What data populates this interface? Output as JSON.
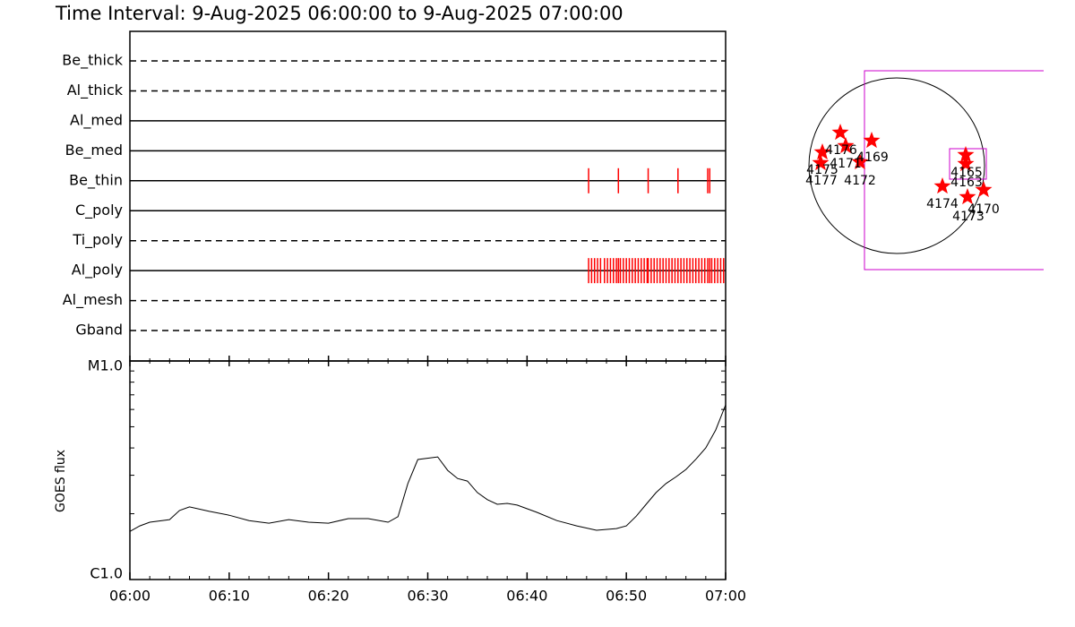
{
  "title": "Time Interval:  9-Aug-2025 06:00:00 to  9-Aug-2025 07:00:00",
  "filter_panel": {
    "xlim": [
      "06:00",
      "07:00"
    ],
    "rows": [
      {
        "name": "Be_thick",
        "style": "dashed",
        "times": []
      },
      {
        "name": "Al_thick",
        "style": "dashed",
        "times": []
      },
      {
        "name": "Al_med",
        "style": "solid",
        "times": []
      },
      {
        "name": "Be_med",
        "style": "solid",
        "times": []
      },
      {
        "name": "Be_thin",
        "style": "solid",
        "times": [
          "06:46:12",
          "06:49:12",
          "06:52:12",
          "06:55:12",
          "06:58:12",
          "06:58:24"
        ]
      },
      {
        "name": "C_poly",
        "style": "solid",
        "times": []
      },
      {
        "name": "Ti_poly",
        "style": "dashed",
        "times": []
      },
      {
        "name": "Al_poly",
        "style": "solid",
        "times": [
          "06:46:12",
          "06:46:30",
          "06:46:48",
          "06:47:06",
          "06:47:24",
          "06:47:48",
          "06:48:06",
          "06:48:24",
          "06:48:42",
          "06:49:00",
          "06:49:12",
          "06:49:24",
          "06:49:42",
          "06:50:00",
          "06:50:18",
          "06:50:36",
          "06:50:54",
          "06:51:12",
          "06:51:30",
          "06:51:48",
          "06:52:06",
          "06:52:12",
          "06:52:30",
          "06:52:48",
          "06:53:06",
          "06:53:24",
          "06:53:42",
          "06:54:00",
          "06:54:18",
          "06:54:36",
          "06:54:54",
          "06:55:12",
          "06:55:30",
          "06:55:48",
          "06:56:06",
          "06:56:24",
          "06:56:42",
          "06:57:00",
          "06:57:18",
          "06:57:36",
          "06:57:54",
          "06:58:12",
          "06:58:24",
          "06:58:36",
          "06:58:54",
          "06:59:12",
          "06:59:30",
          "06:59:48"
        ]
      },
      {
        "name": "Al_mesh",
        "style": "dashed",
        "times": []
      },
      {
        "name": "Gband",
        "style": "dashed",
        "times": []
      }
    ],
    "tick_color": "#ff0000"
  },
  "goes_panel": {
    "type": "line",
    "ylabel": "GOES flux",
    "log_scale": true,
    "ylim": [
      1e-06,
      1e-05
    ],
    "yticks": [
      {
        "value": 1e-05,
        "label": "M1.0"
      },
      {
        "value": 1e-06,
        "label": "C1.0"
      }
    ],
    "yminorticks": [
      2e-06,
      3e-06,
      4e-06,
      5e-06,
      6e-06,
      7e-06,
      8e-06,
      9e-06
    ],
    "xlim": [
      "06:00",
      "07:00"
    ],
    "xticks": [
      "06:00",
      "06:10",
      "06:20",
      "06:30",
      "06:40",
      "06:50",
      "07:00"
    ],
    "xminorticks": [
      "06:02",
      "06:04",
      "06:06",
      "06:08",
      "06:12",
      "06:14",
      "06:16",
      "06:18",
      "06:22",
      "06:24",
      "06:26",
      "06:28",
      "06:32",
      "06:34",
      "06:36",
      "06:38",
      "06:42",
      "06:44",
      "06:46",
      "06:48",
      "06:52",
      "06:54",
      "06:56",
      "06:58"
    ],
    "x": [
      "06:00",
      "06:01",
      "06:02",
      "06:04",
      "06:05",
      "06:06",
      "06:08",
      "06:10",
      "06:12",
      "06:14",
      "06:16",
      "06:18",
      "06:20",
      "06:22",
      "06:24",
      "06:26",
      "06:27",
      "06:28",
      "06:29",
      "06:31",
      "06:32",
      "06:33",
      "06:34",
      "06:35",
      "06:36",
      "06:37",
      "06:38",
      "06:39",
      "06:41",
      "06:43",
      "06:45",
      "06:47",
      "06:49",
      "06:50",
      "06:51",
      "06:52",
      "06:53",
      "06:54",
      "06:55",
      "06:56",
      "06:57",
      "06:58",
      "06:59",
      "07:00"
    ],
    "values": [
      1.66e-06,
      1.76e-06,
      1.83e-06,
      1.88e-06,
      2.07e-06,
      2.15e-06,
      2.05e-06,
      1.97e-06,
      1.86e-06,
      1.81e-06,
      1.88e-06,
      1.83e-06,
      1.81e-06,
      1.9e-06,
      1.9e-06,
      1.83e-06,
      1.94e-06,
      2.75e-06,
      3.54e-06,
      3.64e-06,
      3.16e-06,
      2.9e-06,
      2.82e-06,
      2.5e-06,
      2.32e-06,
      2.21e-06,
      2.23e-06,
      2.19e-06,
      2.03e-06,
      1.86e-06,
      1.76e-06,
      1.68e-06,
      1.71e-06,
      1.76e-06,
      1.95e-06,
      2.21e-06,
      2.5e-06,
      2.75e-06,
      2.95e-06,
      3.19e-06,
      3.55e-06,
      4e-06,
      4.83e-06,
      6.3e-06
    ],
    "color": "#000000"
  },
  "sun_panel": {
    "star_color": "#ff0000",
    "box_color": "#cc00cc",
    "regions": [
      "4176",
      "4175",
      "4171",
      "4177",
      "4169",
      "4172",
      "4165",
      "4163",
      "4174",
      "4173",
      "4170"
    ]
  }
}
